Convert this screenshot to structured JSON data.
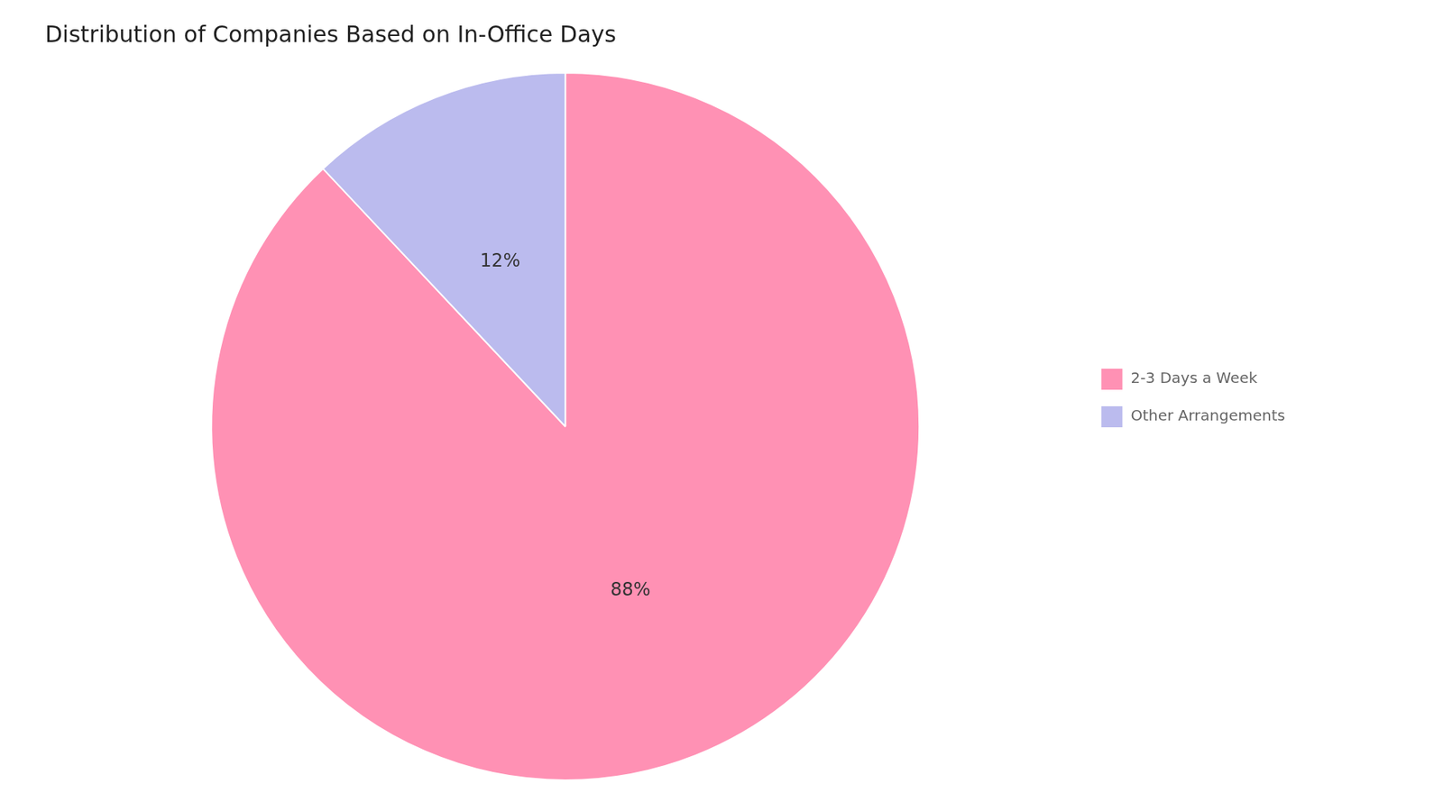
{
  "chart_data": {
    "type": "pie",
    "title": "Distribution of Companies Based on In-Office Days",
    "categories": [
      "2-3 Days a Week",
      "Other Arrangements"
    ],
    "values": [
      88,
      12
    ],
    "value_labels": [
      "88%",
      "12%"
    ],
    "colors": [
      "#FF91B4",
      "#BBBBEE"
    ],
    "data_labels": true,
    "legend": "right"
  }
}
